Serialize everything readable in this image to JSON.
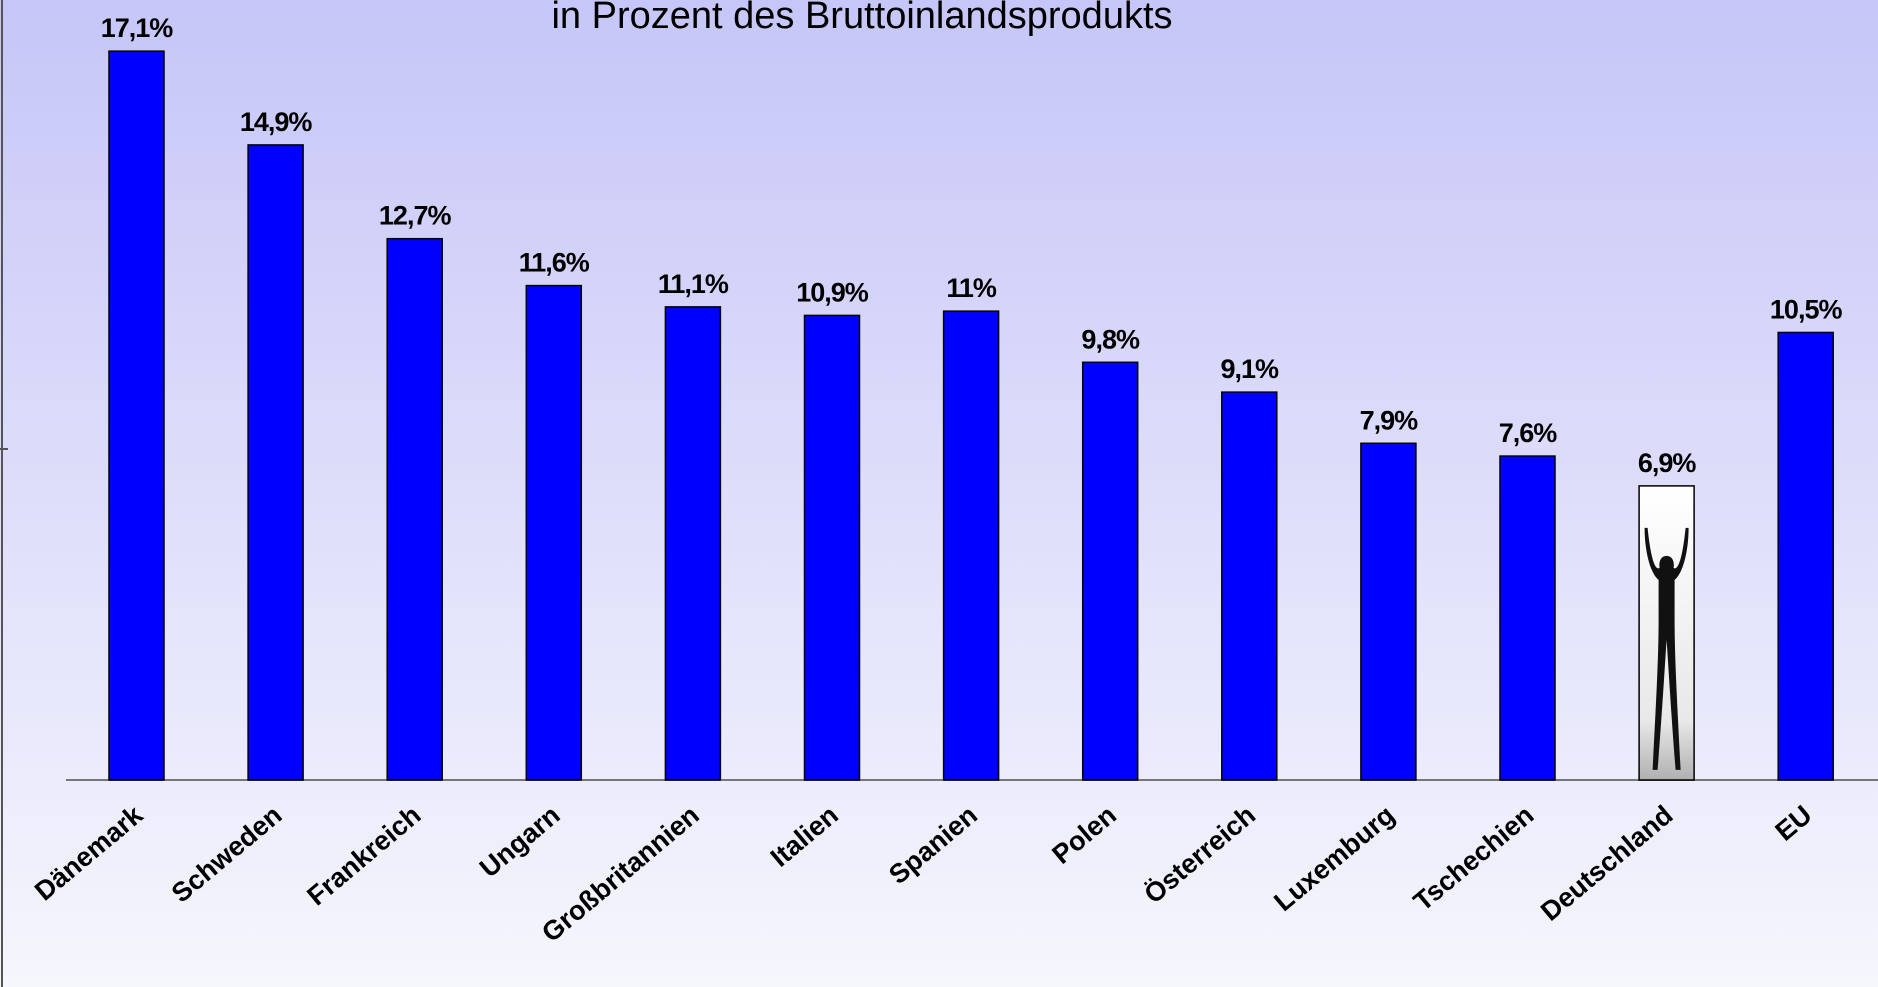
{
  "chart_data": {
    "type": "bar",
    "title": "in Prozent des Bruttoinlandsprodukts",
    "categories": [
      "Dänemark",
      "Schweden",
      "Frankreich",
      "Ungarn",
      "Großbritannien",
      "Italien",
      "Spanien",
      "Polen",
      "Österreich",
      "Luxemburg",
      "Tschechien",
      "Deutschland",
      "EU"
    ],
    "values": [
      17.1,
      14.9,
      12.7,
      11.6,
      11.1,
      10.9,
      11,
      9.8,
      9.1,
      7.9,
      7.6,
      6.9,
      10.5
    ],
    "value_labels": [
      "17,1%",
      "14,9%",
      "12,7%",
      "11,6%",
      "11,1%",
      "10,9%",
      "11%",
      "9,8%",
      "9,1%",
      "7,9%",
      "7,6%",
      "6,9%",
      "10,5%"
    ],
    "colors": [
      "#0000ff",
      "#0000ff",
      "#0000ff",
      "#0000ff",
      "#0000ff",
      "#0000ff",
      "#0000ff",
      "#0000ff",
      "#0000ff",
      "#0000ff",
      "#0000ff",
      "#ffffff",
      "#0000ff"
    ],
    "ylim": [
      0,
      18.3
    ]
  }
}
